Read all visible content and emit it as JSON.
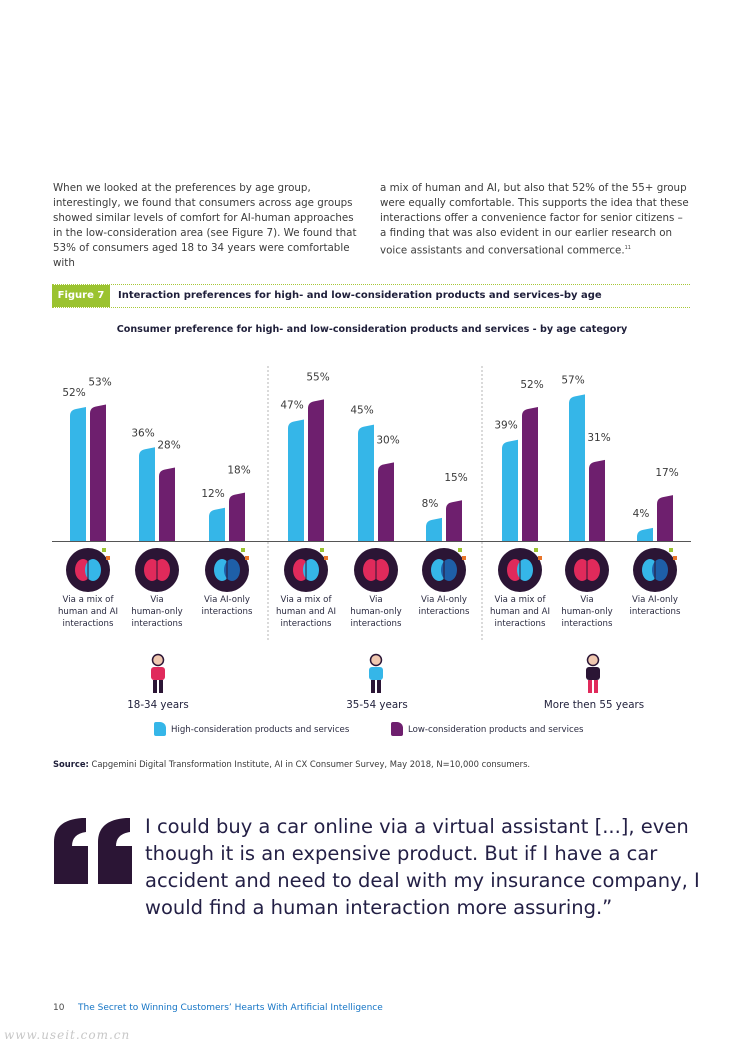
{
  "intro": {
    "left": "When we looked at the preferences by age group, interestingly, we found that consumers across age groups showed similar levels of comfort for AI-human approaches in the low-consideration area (see Figure 7). We found that 53% of consumers aged 18 to 34 years were comfortable with",
    "right": "a mix of human and AI, but also that 52% of the 55+ group were equally comfortable. This supports the idea that these interactions offer a convenience factor for senior citizens – a finding that was also evident in our earlier research on voice assistants and conversational commerce.",
    "right_sup": "11"
  },
  "figure": {
    "tag": "Figure 7",
    "title": "Interaction preferences for high- and low-consideration products and services-by age"
  },
  "colors": {
    "high": "#35b6e8",
    "low": "#6e1f6e",
    "accent": "#9bc330",
    "brand_dark": "#2b1535"
  },
  "chart_data": {
    "type": "bar",
    "title": "Consumer preference for high- and low-consideration products and services - by age category",
    "groups": [
      "18-34 years",
      "35-54 years",
      "More then 55 years"
    ],
    "categories": [
      "Via a mix of human and AI interactions",
      "Via human-only interactions",
      "Via AI-only interactions"
    ],
    "series": [
      {
        "name": "High-consideration products and services",
        "color": "#35b6e8",
        "values": [
          [
            52,
            36,
            12
          ],
          [
            47,
            45,
            8
          ],
          [
            39,
            57,
            4
          ]
        ]
      },
      {
        "name": "Low-consideration products and services",
        "color": "#6e1f6e",
        "values": [
          [
            53,
            28,
            18
          ],
          [
            55,
            30,
            15
          ],
          [
            52,
            31,
            17
          ]
        ]
      }
    ],
    "unit": "%",
    "grid": false,
    "legend_position": "bottom"
  },
  "category_labels": [
    [
      "Via a mix of",
      "human and AI",
      "interactions"
    ],
    [
      "Via",
      "human-only",
      "interactions"
    ],
    [
      "Via AI-only",
      "interactions"
    ]
  ],
  "icons": [
    "brain-circuit-icon",
    "brain-icon",
    "circuit-brain-icon"
  ],
  "age_icons": [
    "young-person-icon",
    "middle-aged-woman-icon",
    "senior-person-icon"
  ],
  "source": {
    "label": "Source:",
    "text": "Capgemini Digital Transformation Institute, AI in CX Consumer Survey, May 2018, N=10,000 consumers."
  },
  "quote": "I could buy a car online via a virtual assistant [...], even though it is an expensive product. But if I have a car accident and need to deal with my insurance company, I would find a human interaction more assuring.”",
  "footer": {
    "page_number": "10",
    "title": "The Secret to Winning Customers’ Hearts With Artificial Intelligence"
  },
  "watermark": "www.useit.com.cn"
}
